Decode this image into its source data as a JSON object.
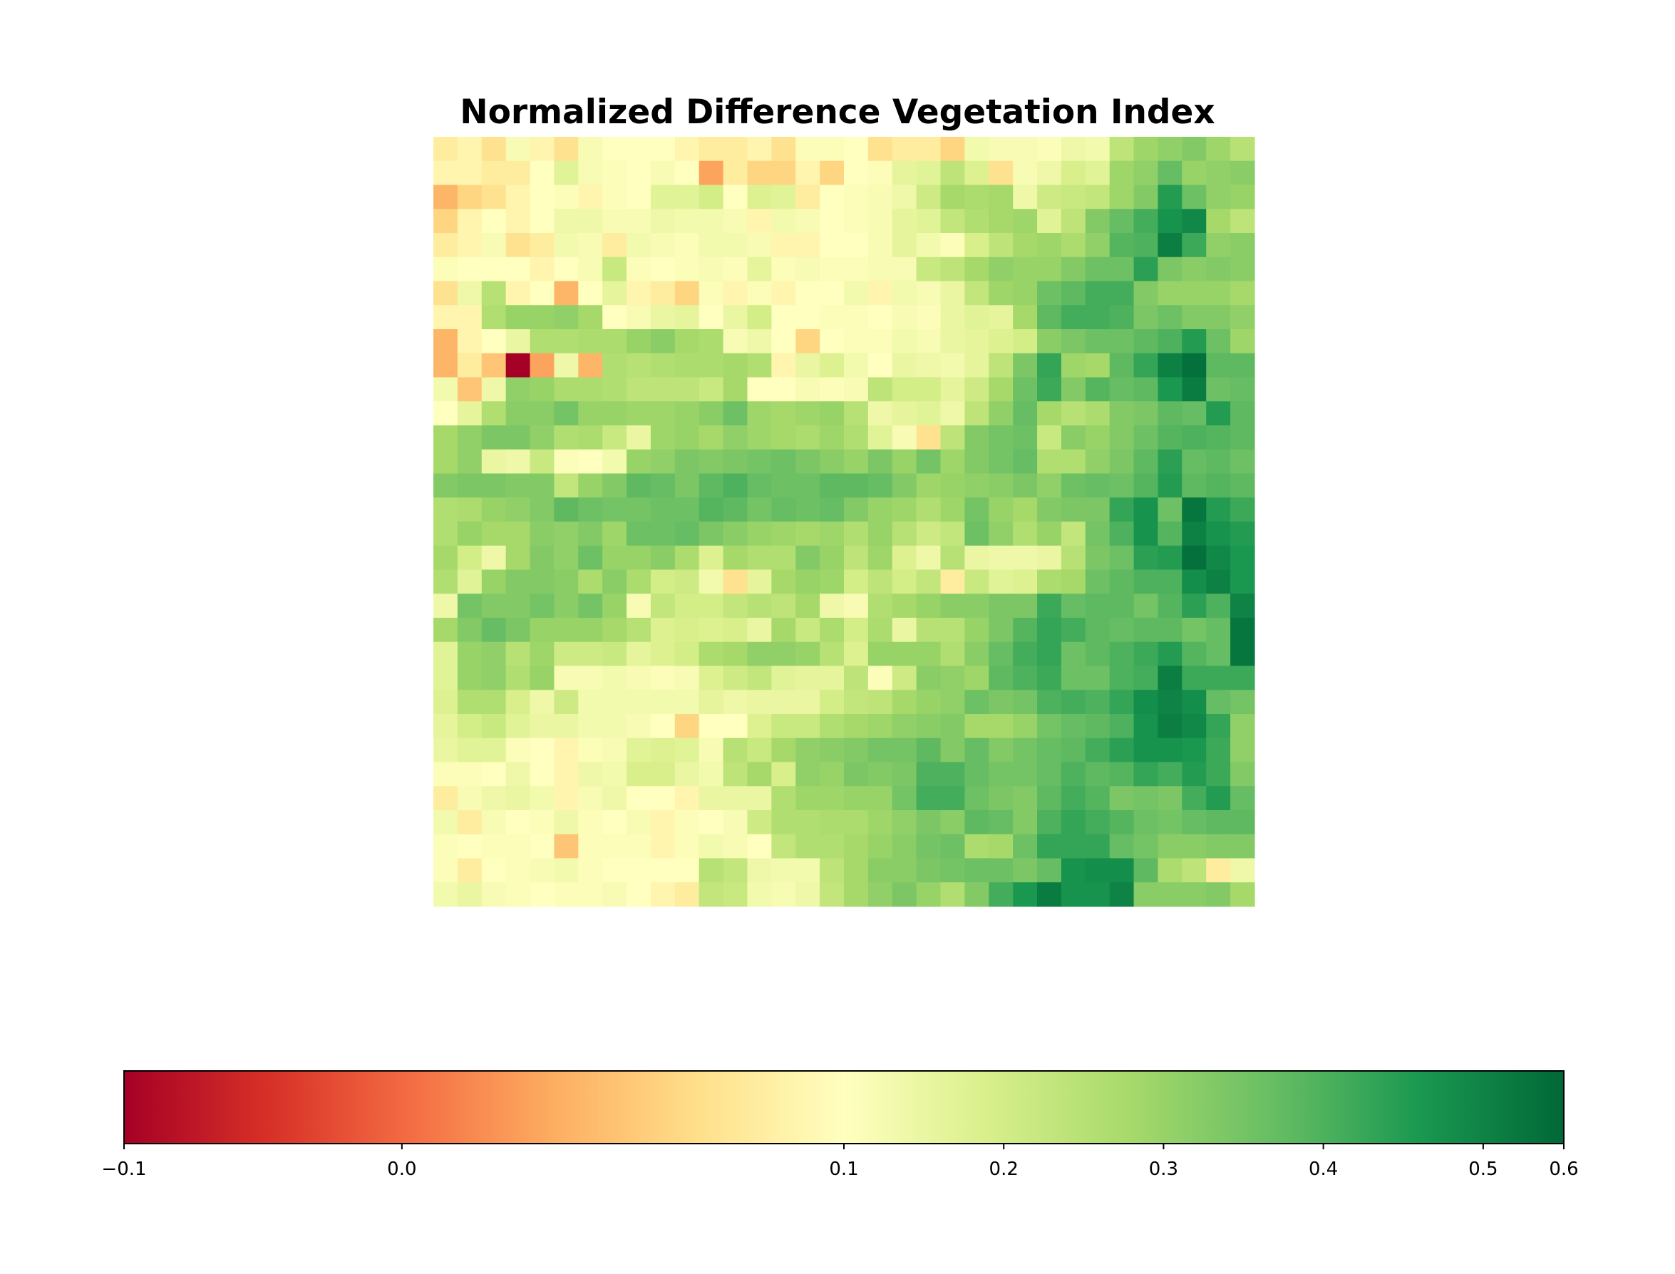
{
  "chart_data": {
    "type": "heatmap",
    "title": "Normalized Difference Vegetation Index",
    "colormap": "RdYlGn",
    "vmin": -0.1,
    "vmax": 0.6,
    "colorbar_ticks": [
      -0.1,
      0.0,
      0.1,
      0.2,
      0.3,
      0.4,
      0.5,
      0.6
    ],
    "colorbar_tick_labels": [
      "−0.1",
      "0.0",
      "0.1",
      "0.2",
      "0.3",
      "0.4",
      "0.5",
      "0.6"
    ],
    "colorbar_orientation": "horizontal",
    "colorbar_placement": "bottom",
    "rows": 32,
    "cols": 34,
    "grid": false,
    "values": [
      [
        0.08,
        0.09,
        0.07,
        0.12,
        0.09,
        0.07,
        0.12,
        0.1,
        0.1,
        0.1,
        0.09,
        0.08,
        0.08,
        0.09,
        0.07,
        0.11,
        0.11,
        0.1,
        0.07,
        0.08,
        0.08,
        0.06,
        0.13,
        0.12,
        0.12,
        0.11,
        0.14,
        0.13,
        0.24,
        0.29,
        0.31,
        0.33,
        0.29,
        0.25
      ],
      [
        0.09,
        0.09,
        0.08,
        0.08,
        0.1,
        0.17,
        0.12,
        0.11,
        0.1,
        0.12,
        0.1,
        0.03,
        0.08,
        0.06,
        0.06,
        0.09,
        0.06,
        0.1,
        0.11,
        0.16,
        0.17,
        0.24,
        0.18,
        0.07,
        0.12,
        0.14,
        0.19,
        0.17,
        0.29,
        0.31,
        0.37,
        0.3,
        0.31,
        0.32
      ],
      [
        0.04,
        0.06,
        0.07,
        0.09,
        0.1,
        0.11,
        0.09,
        0.11,
        0.1,
        0.17,
        0.17,
        0.2,
        0.1,
        0.18,
        0.17,
        0.08,
        0.1,
        0.11,
        0.12,
        0.14,
        0.21,
        0.28,
        0.27,
        0.28,
        0.14,
        0.21,
        0.22,
        0.23,
        0.29,
        0.33,
        0.45,
        0.36,
        0.31,
        0.3
      ],
      [
        0.06,
        0.09,
        0.1,
        0.09,
        0.1,
        0.14,
        0.14,
        0.12,
        0.12,
        0.14,
        0.13,
        0.13,
        0.12,
        0.09,
        0.13,
        0.12,
        0.1,
        0.11,
        0.12,
        0.16,
        0.17,
        0.23,
        0.26,
        0.28,
        0.29,
        0.17,
        0.24,
        0.33,
        0.37,
        0.41,
        0.47,
        0.49,
        0.28,
        0.24
      ],
      [
        0.08,
        0.09,
        0.12,
        0.07,
        0.08,
        0.13,
        0.12,
        0.08,
        0.13,
        0.12,
        0.11,
        0.13,
        0.13,
        0.12,
        0.09,
        0.09,
        0.1,
        0.1,
        0.12,
        0.16,
        0.13,
        0.11,
        0.19,
        0.24,
        0.28,
        0.29,
        0.27,
        0.31,
        0.39,
        0.4,
        0.52,
        0.42,
        0.31,
        0.32
      ],
      [
        0.11,
        0.1,
        0.1,
        0.1,
        0.09,
        0.1,
        0.12,
        0.22,
        0.11,
        0.1,
        0.11,
        0.12,
        0.11,
        0.16,
        0.11,
        0.12,
        0.11,
        0.11,
        0.12,
        0.12,
        0.22,
        0.24,
        0.28,
        0.31,
        0.3,
        0.3,
        0.33,
        0.36,
        0.36,
        0.44,
        0.34,
        0.32,
        0.33,
        0.32
      ],
      [
        0.07,
        0.14,
        0.25,
        0.09,
        0.1,
        0.04,
        0.1,
        0.16,
        0.09,
        0.08,
        0.06,
        0.11,
        0.09,
        0.11,
        0.09,
        0.1,
        0.1,
        0.13,
        0.09,
        0.13,
        0.12,
        0.15,
        0.23,
        0.29,
        0.3,
        0.36,
        0.38,
        0.41,
        0.41,
        0.33,
        0.3,
        0.3,
        0.3,
        0.28
      ],
      [
        0.09,
        0.09,
        0.26,
        0.3,
        0.3,
        0.31,
        0.28,
        0.1,
        0.12,
        0.15,
        0.16,
        0.1,
        0.15,
        0.2,
        0.1,
        0.1,
        0.11,
        0.11,
        0.1,
        0.12,
        0.11,
        0.15,
        0.17,
        0.16,
        0.28,
        0.38,
        0.41,
        0.41,
        0.4,
        0.34,
        0.36,
        0.33,
        0.33,
        0.31
      ],
      [
        0.04,
        0.09,
        0.1,
        0.15,
        0.26,
        0.26,
        0.27,
        0.27,
        0.3,
        0.32,
        0.28,
        0.27,
        0.12,
        0.14,
        0.1,
        0.06,
        0.1,
        0.11,
        0.11,
        0.13,
        0.12,
        0.15,
        0.16,
        0.18,
        0.2,
        0.32,
        0.34,
        0.36,
        0.36,
        0.38,
        0.4,
        0.45,
        0.36,
        0.29
      ],
      [
        0.04,
        0.08,
        0.05,
        -0.1,
        0.03,
        0.14,
        0.04,
        0.26,
        0.25,
        0.26,
        0.27,
        0.27,
        0.28,
        0.26,
        0.09,
        0.15,
        0.18,
        0.13,
        0.1,
        0.15,
        0.14,
        0.13,
        0.16,
        0.24,
        0.34,
        0.43,
        0.29,
        0.28,
        0.38,
        0.43,
        0.51,
        0.57,
        0.38,
        0.38
      ],
      [
        0.13,
        0.05,
        0.14,
        0.31,
        0.3,
        0.27,
        0.27,
        0.26,
        0.24,
        0.24,
        0.24,
        0.22,
        0.28,
        0.1,
        0.1,
        0.12,
        0.11,
        0.12,
        0.24,
        0.2,
        0.2,
        0.16,
        0.21,
        0.28,
        0.36,
        0.42,
        0.33,
        0.39,
        0.37,
        0.38,
        0.46,
        0.53,
        0.36,
        0.37
      ],
      [
        0.1,
        0.16,
        0.26,
        0.32,
        0.32,
        0.35,
        0.3,
        0.3,
        0.29,
        0.29,
        0.3,
        0.32,
        0.36,
        0.29,
        0.28,
        0.29,
        0.3,
        0.25,
        0.14,
        0.16,
        0.17,
        0.14,
        0.24,
        0.31,
        0.37,
        0.28,
        0.25,
        0.27,
        0.33,
        0.34,
        0.38,
        0.37,
        0.45,
        0.38
      ],
      [
        0.28,
        0.31,
        0.34,
        0.34,
        0.31,
        0.26,
        0.27,
        0.22,
        0.15,
        0.29,
        0.3,
        0.28,
        0.31,
        0.29,
        0.28,
        0.27,
        0.29,
        0.26,
        0.17,
        0.12,
        0.07,
        0.24,
        0.33,
        0.35,
        0.36,
        0.22,
        0.32,
        0.3,
        0.33,
        0.36,
        0.39,
        0.4,
        0.39,
        0.38
      ],
      [
        0.28,
        0.31,
        0.15,
        0.14,
        0.22,
        0.11,
        0.1,
        0.13,
        0.3,
        0.31,
        0.34,
        0.33,
        0.34,
        0.35,
        0.36,
        0.34,
        0.32,
        0.3,
        0.34,
        0.3,
        0.35,
        0.29,
        0.33,
        0.35,
        0.37,
        0.26,
        0.26,
        0.31,
        0.34,
        0.38,
        0.44,
        0.37,
        0.38,
        0.36
      ],
      [
        0.33,
        0.34,
        0.34,
        0.33,
        0.33,
        0.23,
        0.3,
        0.33,
        0.38,
        0.37,
        0.34,
        0.38,
        0.4,
        0.37,
        0.36,
        0.36,
        0.38,
        0.38,
        0.37,
        0.33,
        0.29,
        0.3,
        0.31,
        0.32,
        0.34,
        0.31,
        0.36,
        0.37,
        0.36,
        0.39,
        0.45,
        0.38,
        0.39,
        0.38
      ],
      [
        0.26,
        0.27,
        0.3,
        0.31,
        0.33,
        0.38,
        0.36,
        0.35,
        0.35,
        0.36,
        0.36,
        0.39,
        0.38,
        0.35,
        0.37,
        0.36,
        0.37,
        0.33,
        0.3,
        0.29,
        0.26,
        0.29,
        0.35,
        0.3,
        0.28,
        0.33,
        0.34,
        0.34,
        0.43,
        0.47,
        0.36,
        0.55,
        0.45,
        0.42
      ],
      [
        0.26,
        0.3,
        0.28,
        0.28,
        0.32,
        0.31,
        0.33,
        0.29,
        0.36,
        0.36,
        0.37,
        0.34,
        0.32,
        0.3,
        0.29,
        0.28,
        0.29,
        0.26,
        0.3,
        0.25,
        0.21,
        0.23,
        0.36,
        0.31,
        0.26,
        0.3,
        0.23,
        0.35,
        0.4,
        0.47,
        0.39,
        0.51,
        0.47,
        0.45
      ],
      [
        0.28,
        0.2,
        0.14,
        0.28,
        0.33,
        0.31,
        0.36,
        0.3,
        0.3,
        0.32,
        0.27,
        0.18,
        0.28,
        0.26,
        0.26,
        0.33,
        0.3,
        0.24,
        0.29,
        0.18,
        0.14,
        0.25,
        0.15,
        0.14,
        0.14,
        0.15,
        0.25,
        0.34,
        0.36,
        0.44,
        0.45,
        0.57,
        0.49,
        0.46
      ],
      [
        0.26,
        0.17,
        0.3,
        0.33,
        0.33,
        0.32,
        0.27,
        0.32,
        0.27,
        0.2,
        0.21,
        0.13,
        0.07,
        0.16,
        0.28,
        0.3,
        0.29,
        0.2,
        0.24,
        0.2,
        0.23,
        0.08,
        0.22,
        0.17,
        0.18,
        0.27,
        0.28,
        0.36,
        0.38,
        0.4,
        0.4,
        0.48,
        0.51,
        0.46
      ],
      [
        0.14,
        0.35,
        0.33,
        0.33,
        0.35,
        0.32,
        0.35,
        0.3,
        0.12,
        0.23,
        0.2,
        0.2,
        0.23,
        0.25,
        0.24,
        0.28,
        0.14,
        0.12,
        0.26,
        0.28,
        0.3,
        0.32,
        0.32,
        0.34,
        0.34,
        0.42,
        0.37,
        0.38,
        0.38,
        0.35,
        0.39,
        0.44,
        0.4,
        0.5
      ],
      [
        0.28,
        0.33,
        0.37,
        0.34,
        0.3,
        0.3,
        0.3,
        0.28,
        0.25,
        0.18,
        0.19,
        0.18,
        0.19,
        0.15,
        0.28,
        0.22,
        0.27,
        0.2,
        0.27,
        0.15,
        0.25,
        0.25,
        0.3,
        0.34,
        0.39,
        0.43,
        0.41,
        0.38,
        0.37,
        0.38,
        0.38,
        0.35,
        0.37,
        0.55
      ],
      [
        0.17,
        0.3,
        0.31,
        0.25,
        0.29,
        0.21,
        0.21,
        0.22,
        0.16,
        0.18,
        0.2,
        0.27,
        0.28,
        0.31,
        0.31,
        0.3,
        0.25,
        0.18,
        0.3,
        0.3,
        0.3,
        0.26,
        0.32,
        0.37,
        0.41,
        0.43,
        0.36,
        0.38,
        0.4,
        0.42,
        0.45,
        0.39,
        0.37,
        0.55
      ],
      [
        0.17,
        0.3,
        0.31,
        0.26,
        0.3,
        0.12,
        0.12,
        0.13,
        0.12,
        0.11,
        0.12,
        0.18,
        0.21,
        0.23,
        0.17,
        0.16,
        0.16,
        0.24,
        0.11,
        0.21,
        0.32,
        0.31,
        0.29,
        0.38,
        0.4,
        0.42,
        0.36,
        0.36,
        0.4,
        0.41,
        0.52,
        0.42,
        0.42,
        0.42
      ],
      [
        0.18,
        0.26,
        0.26,
        0.19,
        0.14,
        0.21,
        0.13,
        0.13,
        0.13,
        0.13,
        0.13,
        0.16,
        0.14,
        0.15,
        0.15,
        0.15,
        0.2,
        0.23,
        0.24,
        0.28,
        0.3,
        0.31,
        0.36,
        0.34,
        0.35,
        0.4,
        0.41,
        0.4,
        0.43,
        0.48,
        0.5,
        0.48,
        0.37,
        0.35
      ],
      [
        0.16,
        0.2,
        0.22,
        0.17,
        0.15,
        0.15,
        0.13,
        0.13,
        0.12,
        0.1,
        0.06,
        0.1,
        0.1,
        0.18,
        0.22,
        0.22,
        0.26,
        0.28,
        0.29,
        0.31,
        0.32,
        0.33,
        0.28,
        0.28,
        0.3,
        0.35,
        0.37,
        0.38,
        0.4,
        0.47,
        0.52,
        0.49,
        0.43,
        0.31
      ],
      [
        0.15,
        0.17,
        0.17,
        0.11,
        0.1,
        0.09,
        0.11,
        0.12,
        0.17,
        0.18,
        0.17,
        0.12,
        0.25,
        0.22,
        0.28,
        0.31,
        0.32,
        0.33,
        0.35,
        0.35,
        0.38,
        0.33,
        0.37,
        0.33,
        0.35,
        0.37,
        0.38,
        0.41,
        0.44,
        0.47,
        0.47,
        0.46,
        0.42,
        0.31
      ],
      [
        0.11,
        0.11,
        0.1,
        0.14,
        0.1,
        0.09,
        0.14,
        0.13,
        0.19,
        0.19,
        0.15,
        0.13,
        0.24,
        0.28,
        0.19,
        0.31,
        0.3,
        0.34,
        0.33,
        0.34,
        0.4,
        0.4,
        0.37,
        0.35,
        0.35,
        0.37,
        0.4,
        0.38,
        0.39,
        0.43,
        0.41,
        0.45,
        0.42,
        0.33
      ],
      [
        0.08,
        0.12,
        0.14,
        0.15,
        0.13,
        0.09,
        0.12,
        0.14,
        0.1,
        0.1,
        0.09,
        0.15,
        0.15,
        0.15,
        0.26,
        0.29,
        0.29,
        0.3,
        0.3,
        0.35,
        0.41,
        0.41,
        0.36,
        0.34,
        0.33,
        0.38,
        0.41,
        0.39,
        0.34,
        0.35,
        0.34,
        0.41,
        0.45,
        0.37
      ],
      [
        0.13,
        0.08,
        0.12,
        0.1,
        0.11,
        0.14,
        0.11,
        0.1,
        0.12,
        0.09,
        0.11,
        0.1,
        0.12,
        0.21,
        0.26,
        0.26,
        0.27,
        0.27,
        0.29,
        0.31,
        0.34,
        0.32,
        0.38,
        0.37,
        0.33,
        0.4,
        0.43,
        0.41,
        0.39,
        0.36,
        0.35,
        0.37,
        0.38,
        0.38
      ],
      [
        0.11,
        0.1,
        0.11,
        0.11,
        0.1,
        0.05,
        0.11,
        0.11,
        0.11,
        0.09,
        0.11,
        0.13,
        0.12,
        0.1,
        0.23,
        0.26,
        0.26,
        0.28,
        0.3,
        0.32,
        0.35,
        0.36,
        0.27,
        0.28,
        0.36,
        0.43,
        0.43,
        0.43,
        0.37,
        0.35,
        0.32,
        0.32,
        0.33,
        0.33
      ],
      [
        0.11,
        0.08,
        0.1,
        0.11,
        0.12,
        0.13,
        0.11,
        0.1,
        0.1,
        0.1,
        0.1,
        0.25,
        0.23,
        0.14,
        0.13,
        0.13,
        0.24,
        0.28,
        0.32,
        0.32,
        0.34,
        0.35,
        0.36,
        0.36,
        0.34,
        0.37,
        0.47,
        0.48,
        0.48,
        0.38,
        0.27,
        0.24,
        0.08,
        0.14
      ],
      [
        0.13,
        0.15,
        0.12,
        0.11,
        0.1,
        0.11,
        0.11,
        0.12,
        0.1,
        0.09,
        0.08,
        0.23,
        0.22,
        0.13,
        0.12,
        0.14,
        0.23,
        0.28,
        0.31,
        0.34,
        0.3,
        0.26,
        0.33,
        0.41,
        0.46,
        0.53,
        0.47,
        0.47,
        0.5,
        0.32,
        0.32,
        0.32,
        0.33,
        0.28
      ]
    ]
  }
}
